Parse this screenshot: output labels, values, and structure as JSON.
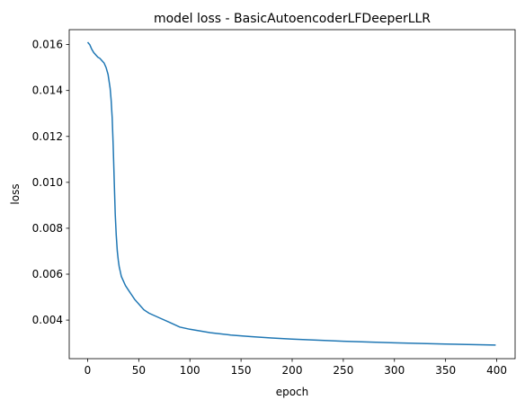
{
  "chart_data": {
    "type": "line",
    "title": "model loss - BasicAutoencoderLFDeeperLLR",
    "xlabel": "epoch",
    "ylabel": "loss",
    "xlim": [
      -18,
      418
    ],
    "ylim": [
      0.00232,
      0.01665
    ],
    "xticks": [
      0,
      50,
      100,
      150,
      200,
      250,
      300,
      350,
      400
    ],
    "xtick_labels": [
      "0",
      "50",
      "100",
      "150",
      "200",
      "250",
      "300",
      "350",
      "400"
    ],
    "yticks": [
      0.004,
      0.006,
      0.008,
      0.01,
      0.012,
      0.014,
      0.016
    ],
    "ytick_labels": [
      "0.004",
      "0.006",
      "0.008",
      "0.010",
      "0.012",
      "0.014",
      "0.016"
    ],
    "grid": false,
    "colors": {
      "line": "#1f77b4"
    },
    "series": [
      {
        "x": [
          0,
          2,
          4,
          6,
          8,
          10,
          12,
          14,
          16,
          18,
          20,
          22,
          23,
          24,
          25,
          26,
          27,
          28,
          29,
          30,
          31,
          32,
          33,
          35,
          37,
          40,
          43,
          46,
          50,
          55,
          60,
          70,
          80,
          90,
          100,
          120,
          140,
          160,
          180,
          200,
          250,
          300,
          350,
          399
        ],
        "y": [
          0.0161,
          0.016,
          0.0158,
          0.01565,
          0.01555,
          0.01545,
          0.0154,
          0.0153,
          0.0152,
          0.015,
          0.0147,
          0.0141,
          0.0136,
          0.0128,
          0.0116,
          0.01,
          0.0086,
          0.0077,
          0.007,
          0.0066,
          0.0063,
          0.0061,
          0.0059,
          0.0057,
          0.0055,
          0.0053,
          0.0051,
          0.0049,
          0.0047,
          0.00445,
          0.0043,
          0.0041,
          0.0039,
          0.0037,
          0.0036,
          0.00345,
          0.00335,
          0.00328,
          0.00322,
          0.00317,
          0.00308,
          0.00301,
          0.00296,
          0.00291
        ]
      }
    ]
  }
}
